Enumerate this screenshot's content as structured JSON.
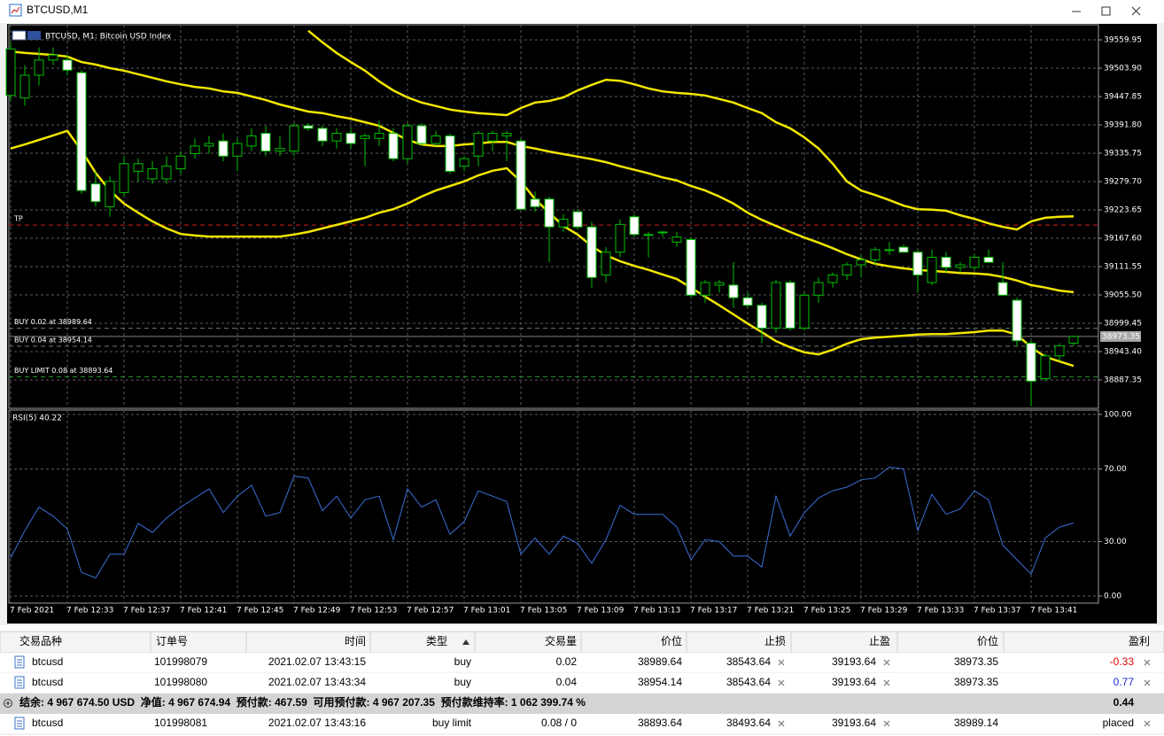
{
  "window": {
    "title": "BTCUSD,M1"
  },
  "chart_data": [
    {
      "type": "candlestick",
      "title": "BTCUSD, M1: Bitcoin USD Index",
      "categories": [
        "7 Feb 2021",
        null,
        null,
        null,
        "7 Feb 12:33",
        null,
        null,
        null,
        "7 Feb 12:37",
        null,
        null,
        null,
        "7 Feb 12:41",
        null,
        null,
        null,
        "7 Feb 12:45",
        null,
        null,
        null,
        "7 Feb 12:49",
        null,
        null,
        null,
        "7 Feb 12:53",
        null,
        null,
        null,
        "7 Feb 12:57",
        null,
        null,
        null,
        "7 Feb 13:01",
        null,
        null,
        null,
        "7 Feb 13:05",
        null,
        null,
        null,
        "7 Feb 13:09",
        null,
        null,
        null,
        "7 Feb 13:13",
        null,
        null,
        null,
        "7 Feb 13:17",
        null,
        null,
        null,
        "7 Feb 13:21",
        null,
        null,
        null,
        "7 Feb 13:25",
        null,
        null,
        null,
        "7 Feb 13:29",
        null,
        null,
        null,
        "7 Feb 13:33",
        null,
        null,
        null,
        "7 Feb 13:37",
        null,
        null,
        null,
        "7 Feb 13:41",
        null,
        null,
        null
      ],
      "open": [
        39450,
        39445,
        39490,
        39520,
        39520,
        39495,
        39275,
        39230,
        39258,
        39300,
        39285,
        39285,
        39305,
        39335,
        39350,
        39360,
        39330,
        39350,
        39375,
        39340,
        39340,
        39390,
        39385,
        39360,
        39375,
        39365,
        39365,
        39375,
        39325,
        39390,
        39355,
        39370,
        39310,
        39330,
        39360,
        39370,
        39360,
        39245,
        39245,
        39190,
        39220,
        39190,
        39095,
        39140,
        39210,
        39175,
        39180,
        39160,
        39165,
        39055,
        39075,
        39075,
        39050,
        39035,
        38990,
        39080,
        38990,
        39055,
        39080,
        39095,
        39115,
        39125,
        39145,
        39150,
        39140,
        39080,
        39130,
        39110,
        39110,
        39130,
        39080,
        39045,
        38960,
        38890,
        38935,
        38960
      ],
      "high": [
        39555,
        39510,
        39545,
        39545,
        39530,
        39500,
        39300,
        39290,
        39330,
        39325,
        39320,
        39330,
        39340,
        39365,
        39370,
        39375,
        39365,
        39385,
        39390,
        39370,
        39395,
        39395,
        39390,
        39385,
        39385,
        39375,
        39400,
        39385,
        39395,
        39395,
        39380,
        39375,
        39330,
        39380,
        39380,
        39380,
        39365,
        39260,
        39250,
        39215,
        39225,
        39200,
        39150,
        39205,
        39215,
        39180,
        39182,
        39180,
        39170,
        39085,
        39085,
        39120,
        39060,
        39040,
        39085,
        39085,
        39060,
        39090,
        39100,
        39120,
        39135,
        39150,
        39160,
        39155,
        39145,
        39145,
        39140,
        39120,
        39135,
        39145,
        39120,
        39050,
        38965,
        38940,
        38960,
        38975
      ],
      "low": [
        39440,
        39430,
        39470,
        39510,
        39490,
        39255,
        39230,
        39210,
        39250,
        39280,
        39275,
        39275,
        39295,
        39325,
        39335,
        39320,
        39300,
        39340,
        39330,
        39330,
        39330,
        39380,
        39350,
        39345,
        39345,
        39310,
        39350,
        39320,
        39315,
        39350,
        39350,
        39295,
        39300,
        39310,
        39340,
        39320,
        39225,
        39220,
        39120,
        39180,
        39185,
        39070,
        39080,
        39130,
        39170,
        39130,
        39170,
        39150,
        39050,
        39040,
        39060,
        39030,
        39030,
        38960,
        38980,
        38985,
        38985,
        39040,
        39070,
        39085,
        39090,
        39115,
        39135,
        39140,
        39060,
        39075,
        39100,
        39100,
        39105,
        39120,
        39055,
        38955,
        38835,
        38885,
        38925,
        38955
      ],
      "close": [
        39542,
        39490,
        39520,
        39530,
        39500,
        39262,
        39240,
        39280,
        39315,
        39315,
        39305,
        39310,
        39330,
        39350,
        39355,
        39330,
        39355,
        39370,
        39340,
        39345,
        39390,
        39385,
        39360,
        39375,
        39355,
        39370,
        39375,
        39325,
        39390,
        39355,
        39370,
        39300,
        39325,
        39375,
        39375,
        39375,
        39225,
        39230,
        39190,
        39205,
        39190,
        39090,
        39140,
        39195,
        39175,
        39175,
        39180,
        39170,
        39055,
        39080,
        39080,
        39050,
        39035,
        38990,
        39080,
        38990,
        39055,
        39080,
        39095,
        39115,
        39125,
        39145,
        39145,
        39140,
        39095,
        39130,
        39110,
        39115,
        39130,
        39120,
        39055,
        38965,
        38885,
        38935,
        38955,
        38973.35
      ],
      "up_color": "#000000",
      "down_color": "#ffffff",
      "wick_color": "#00c000",
      "overlays": [
        {
          "color": "#f2e600",
          "values": [
            null,
            null,
            null,
            null,
            null,
            null,
            null,
            null,
            null,
            null,
            null,
            null,
            null,
            null,
            null,
            null,
            null,
            null,
            null,
            null,
            null,
            39578,
            39555,
            39534,
            39516,
            39499,
            39478,
            39460,
            39446,
            39436,
            39429,
            39422,
            39418,
            39415,
            39413,
            39411,
            39425,
            39436,
            39439,
            39446,
            39460,
            39471,
            39481,
            39479,
            39472,
            39464,
            39458,
            39455,
            39453,
            39450,
            39443,
            39436,
            39425,
            39415,
            39397,
            39385,
            39367,
            39345,
            39315,
            39280,
            39262,
            39253,
            39243,
            39232,
            39225,
            39224,
            39222,
            39213,
            39206,
            39197,
            39190,
            39185,
            39201,
            39208,
            39210,
            39211
          ]
        },
        {
          "color": "#f2e600",
          "values": [
            39537,
            39534,
            39532,
            39530,
            39527,
            39516,
            39511,
            39504,
            39499,
            39492,
            39485,
            39478,
            39472,
            39467,
            39464,
            39458,
            39455,
            39448,
            39441,
            39432,
            39425,
            39418,
            39415,
            39409,
            39404,
            39397,
            39390,
            39376,
            39362,
            39353,
            39350,
            39350,
            39353,
            39355,
            39358,
            39358,
            39350,
            39345,
            39339,
            39334,
            39329,
            39324,
            39318,
            39310,
            39303,
            39296,
            39288,
            39282,
            39271,
            39262,
            39250,
            39236,
            39218,
            39204,
            39192,
            39180,
            39169,
            39159,
            39148,
            39136,
            39126,
            39117,
            39112,
            39108,
            39105,
            39103,
            39101,
            39099,
            39098,
            39096,
            39091,
            39084,
            39075,
            39070,
            39064,
            39061
          ]
        },
        {
          "color": "#f2e600",
          "values": [
            39345,
            39353,
            39362,
            39371,
            39380,
            39341,
            39297,
            39262,
            39236,
            39218,
            39201,
            39187,
            39176,
            39173,
            39171,
            39171,
            39171,
            39171,
            39171,
            39171,
            39175,
            39180,
            39187,
            39194,
            39201,
            39208,
            39218,
            39225,
            39236,
            39250,
            39262,
            39271,
            39280,
            39292,
            39301,
            39306,
            39280,
            39245,
            39218,
            39192,
            39175,
            39152,
            39134,
            39122,
            39113,
            39105,
            39096,
            39087,
            39070,
            39052,
            39035,
            39017,
            38999,
            38982,
            38964,
            38952,
            38942,
            38938,
            38947,
            38959,
            38968,
            38971,
            38973,
            38975,
            38977,
            38978,
            38978,
            38980,
            38982,
            38985,
            38985,
            38977,
            38952,
            38933,
            38924,
            38915
          ]
        }
      ],
      "levels": [
        {
          "label": "TP",
          "value": 39193.64,
          "color": "#d02020"
        },
        {
          "label": "BUY 0.02 at 38989.64",
          "value": 38989.64,
          "color": "#6a7a6a"
        },
        {
          "label": "BUY 0.04 at 38954.14",
          "value": 38954.14,
          "color": "#6a7a6a"
        },
        {
          "label": "BUY LIMIT 0.08 at 38893.64",
          "value": 38893.64,
          "color": "#2a9a2a"
        }
      ],
      "last_price": 38973.35,
      "ylim": [
        38831.3,
        39589.7
      ],
      "yticks": [
        39559.95,
        {
          "value": 39503.9,
          "label": "39503.90"
        },
        39447.85,
        {
          "value": 39391.8,
          "label": "39391.80"
        },
        39335.75,
        {
          "value": 39279.7,
          "label": "39279.70"
        },
        39223.65,
        {
          "value": 39167.6,
          "label": "39167.60"
        },
        39111.55,
        {
          "value": 39055.5,
          "label": "39055.50"
        },
        38999.45,
        {
          "value": 38943.4,
          "label": "38943.40"
        },
        38887.35
      ],
      "grid": true
    },
    {
      "type": "line",
      "title": "RSI(5) 40.22",
      "color": "#3a6fd8",
      "values": [
        21,
        36,
        49,
        44,
        37,
        13,
        10,
        23,
        23,
        40,
        35,
        43,
        49,
        54,
        59,
        46,
        55,
        61,
        44,
        46,
        66,
        65,
        47,
        55,
        43,
        53,
        55,
        31,
        59,
        49,
        53,
        34,
        41,
        58,
        55,
        52,
        23,
        32,
        23,
        33,
        29,
        18,
        31,
        50,
        45,
        45,
        45,
        38,
        20,
        31,
        30,
        22,
        22,
        16,
        55,
        33,
        46,
        54,
        58,
        60,
        64,
        65,
        71,
        70,
        36,
        56,
        45,
        48,
        58,
        53,
        28,
        20,
        12,
        32,
        38,
        40.22
      ],
      "ylim": [
        -3.9,
        102.4
      ],
      "yticks": [
        {
          "value": 100,
          "label": "100.00"
        },
        {
          "value": 70,
          "label": "70.00"
        },
        {
          "value": 30,
          "label": "30.00"
        },
        {
          "value": 0,
          "label": "0.00"
        }
      ],
      "grid": true
    }
  ],
  "orders": {
    "headers": [
      "交易品种",
      "订单号",
      "时间",
      "类型",
      "交易量",
      "价位",
      "止损",
      "止盈",
      "价位",
      "盈利"
    ],
    "rows": [
      {
        "cells": [
          "btcusd",
          "101998079",
          "2021.02.07 13:43:15",
          "buy",
          "0.02",
          "38989.64",
          "38543.64",
          "39193.64",
          "38973.35",
          "-0.33"
        ],
        "profit_color": "#e00000"
      },
      {
        "cells": [
          "btcusd",
          "101998080",
          "2021.02.07 13:43:34",
          "buy",
          "0.04",
          "38954.14",
          "38543.64",
          "39193.64",
          "38973.35",
          "0.77"
        ],
        "profit_color": "#1a2ad0"
      }
    ],
    "summary": "结余: 4 967 674.50 USD  净值: 4 967 674.94  预付款: 467.59  可用预付款: 4 967 207.35  预付款维持率: 1 062 399.74 %",
    "summary_profit": "0.44",
    "pending_rows": [
      {
        "cells": [
          "btcusd",
          "101998081",
          "2021.02.07 13:43:16",
          "buy limit",
          "0.08 / 0",
          "38893.64",
          "38493.64",
          "39193.64",
          "38989.14",
          "placed"
        ],
        "profit_color": "#000000"
      }
    ]
  }
}
